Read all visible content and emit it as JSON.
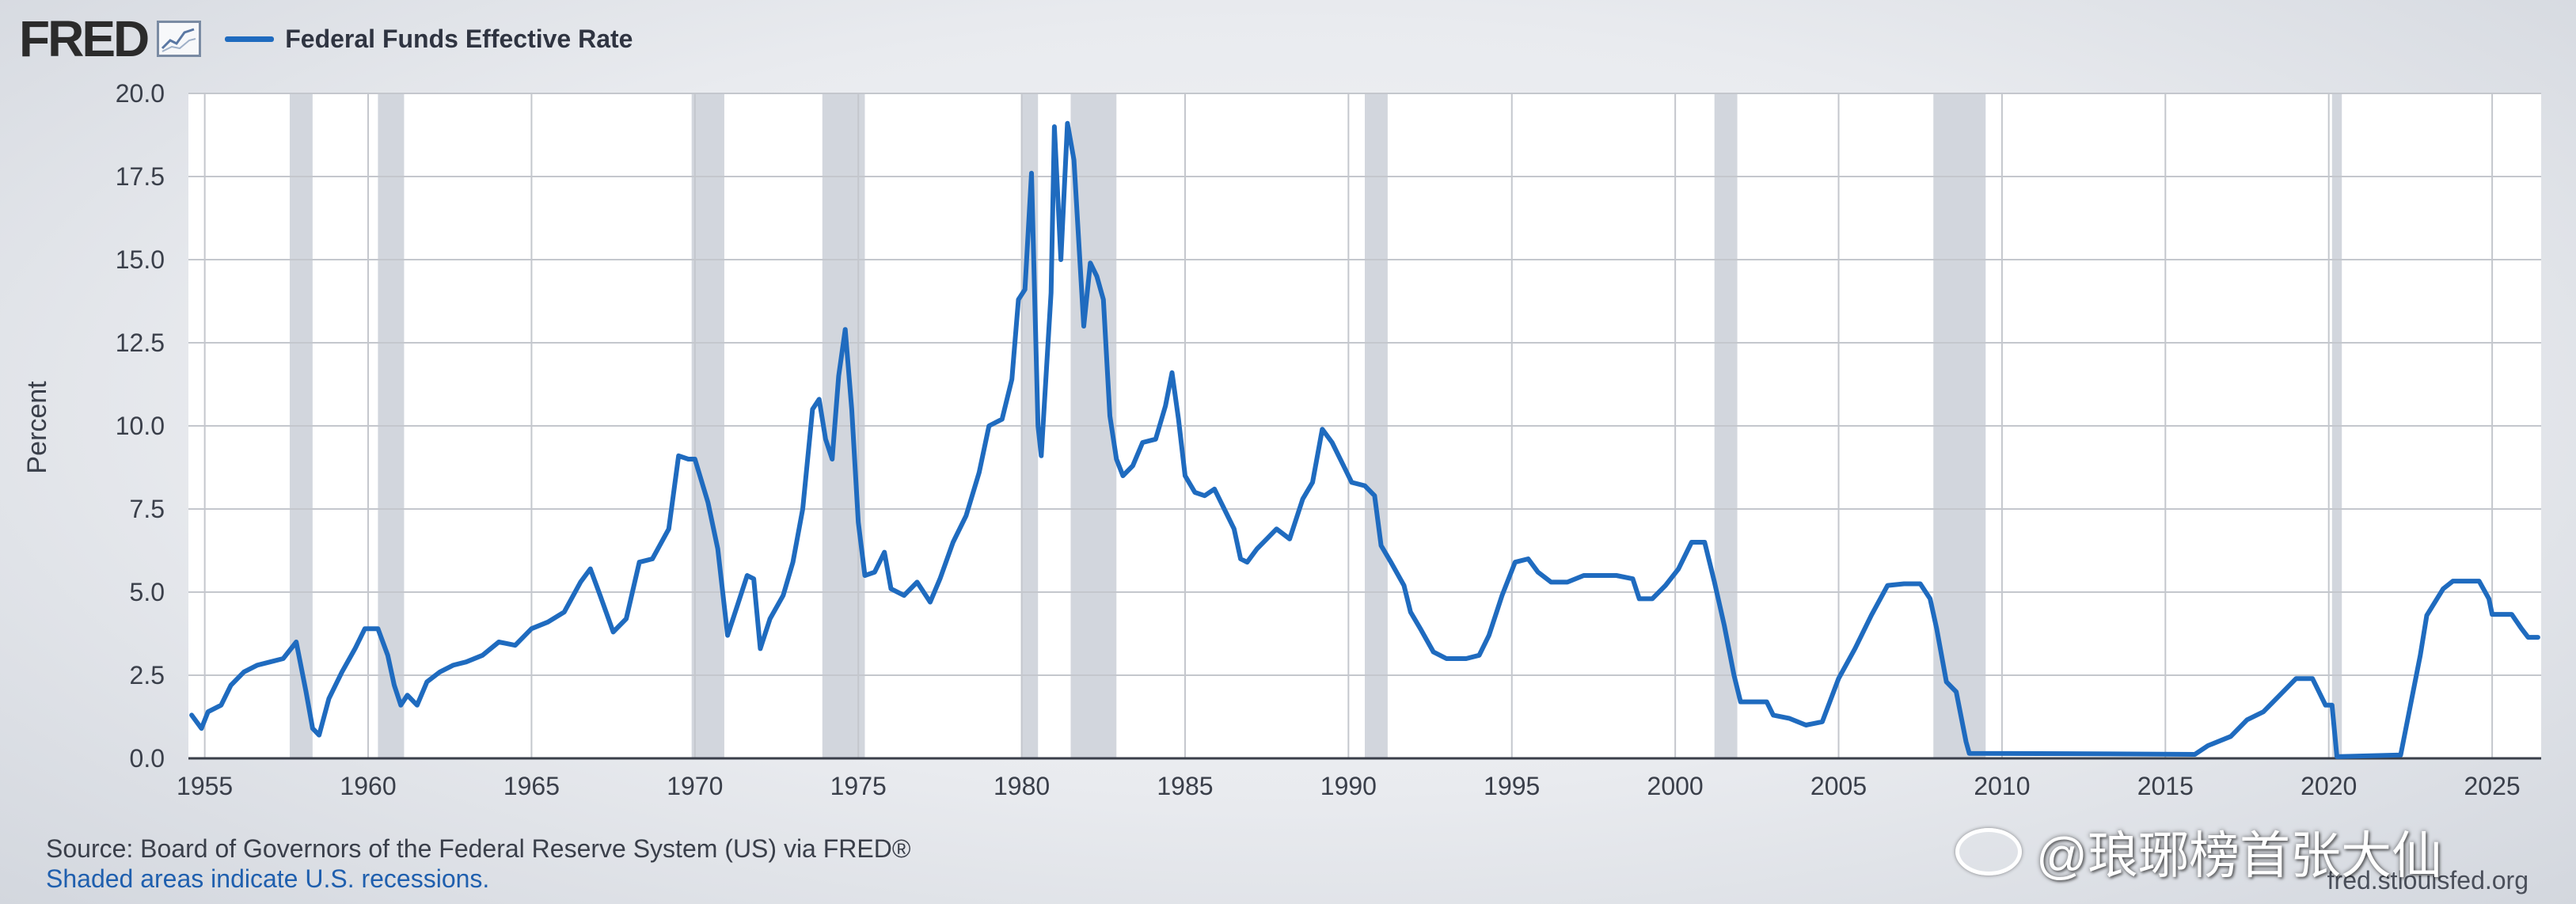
{
  "header": {
    "logo_text": "FRED",
    "logo_icon": "line-chart-icon",
    "series_label": "Federal Funds Effective Rate"
  },
  "colors": {
    "series": "#1f6bbf",
    "recession_fill": "#d2d6dd",
    "grid": "#c4c7cd",
    "plot_bg": "#ffffff"
  },
  "chart_data": {
    "type": "line",
    "ylabel": "Percent",
    "xlim": [
      1954.5,
      2026.5
    ],
    "ylim": [
      0,
      20
    ],
    "yticks": [
      "0.0",
      "2.5",
      "5.0",
      "7.5",
      "10.0",
      "12.5",
      "15.0",
      "17.5",
      "20.0"
    ],
    "ytick_values": [
      0,
      2.5,
      5,
      7.5,
      10,
      12.5,
      15,
      17.5,
      20
    ],
    "xticks": [
      "1955",
      "1960",
      "1965",
      "1970",
      "1975",
      "1980",
      "1985",
      "1990",
      "1995",
      "2000",
      "2005",
      "2010",
      "2015",
      "2020",
      "2025"
    ],
    "xtick_values": [
      1955,
      1960,
      1965,
      1970,
      1975,
      1980,
      1985,
      1990,
      1995,
      2000,
      2005,
      2010,
      2015,
      2020,
      2025
    ],
    "grid": true,
    "recessions": [
      [
        1957.6,
        1958.3
      ],
      [
        1960.3,
        1961.1
      ],
      [
        1969.9,
        1970.9
      ],
      [
        1973.9,
        1975.2
      ],
      [
        1980.0,
        1980.5
      ],
      [
        1981.5,
        1982.9
      ],
      [
        1990.5,
        1991.2
      ],
      [
        2001.2,
        2001.9
      ],
      [
        2007.9,
        2009.5
      ],
      [
        2020.1,
        2020.4
      ]
    ],
    "series": [
      {
        "values": [
          [
            1954.6,
            1.3
          ],
          [
            1954.9,
            0.9
          ],
          [
            1955.1,
            1.4
          ],
          [
            1955.5,
            1.6
          ],
          [
            1955.8,
            2.2
          ],
          [
            1956.2,
            2.6
          ],
          [
            1956.6,
            2.8
          ],
          [
            1957.0,
            2.9
          ],
          [
            1957.4,
            3.0
          ],
          [
            1957.8,
            3.5
          ],
          [
            1958.1,
            2.0
          ],
          [
            1958.3,
            0.9
          ],
          [
            1958.5,
            0.7
          ],
          [
            1958.8,
            1.8
          ],
          [
            1959.2,
            2.6
          ],
          [
            1959.6,
            3.3
          ],
          [
            1959.9,
            3.9
          ],
          [
            1960.3,
            3.9
          ],
          [
            1960.6,
            3.1
          ],
          [
            1960.8,
            2.2
          ],
          [
            1961.0,
            1.6
          ],
          [
            1961.2,
            1.9
          ],
          [
            1961.5,
            1.6
          ],
          [
            1961.8,
            2.3
          ],
          [
            1962.2,
            2.6
          ],
          [
            1962.6,
            2.8
          ],
          [
            1963.0,
            2.9
          ],
          [
            1963.5,
            3.1
          ],
          [
            1964.0,
            3.5
          ],
          [
            1964.5,
            3.4
          ],
          [
            1965.0,
            3.9
          ],
          [
            1965.5,
            4.1
          ],
          [
            1966.0,
            4.4
          ],
          [
            1966.5,
            5.3
          ],
          [
            1966.8,
            5.7
          ],
          [
            1967.1,
            4.9
          ],
          [
            1967.5,
            3.8
          ],
          [
            1967.9,
            4.2
          ],
          [
            1968.3,
            5.9
          ],
          [
            1968.7,
            6.0
          ],
          [
            1969.2,
            6.9
          ],
          [
            1969.5,
            9.1
          ],
          [
            1969.8,
            9.0
          ],
          [
            1970.0,
            9.0
          ],
          [
            1970.4,
            7.7
          ],
          [
            1970.7,
            6.3
          ],
          [
            1971.0,
            3.7
          ],
          [
            1971.3,
            4.6
          ],
          [
            1971.6,
            5.5
          ],
          [
            1971.8,
            5.4
          ],
          [
            1972.0,
            3.3
          ],
          [
            1972.3,
            4.2
          ],
          [
            1972.7,
            4.9
          ],
          [
            1973.0,
            5.9
          ],
          [
            1973.3,
            7.5
          ],
          [
            1973.6,
            10.5
          ],
          [
            1973.8,
            10.8
          ],
          [
            1974.0,
            9.6
          ],
          [
            1974.2,
            9.0
          ],
          [
            1974.4,
            11.5
          ],
          [
            1974.6,
            12.9
          ],
          [
            1974.8,
            10.5
          ],
          [
            1975.0,
            7.1
          ],
          [
            1975.2,
            5.5
          ],
          [
            1975.5,
            5.6
          ],
          [
            1975.8,
            6.2
          ],
          [
            1976.0,
            5.1
          ],
          [
            1976.4,
            4.9
          ],
          [
            1976.8,
            5.3
          ],
          [
            1977.2,
            4.7
          ],
          [
            1977.5,
            5.4
          ],
          [
            1977.9,
            6.5
          ],
          [
            1978.3,
            7.3
          ],
          [
            1978.7,
            8.6
          ],
          [
            1979.0,
            10.0
          ],
          [
            1979.4,
            10.2
          ],
          [
            1979.7,
            11.4
          ],
          [
            1979.9,
            13.8
          ],
          [
            1980.1,
            14.1
          ],
          [
            1980.3,
            17.6
          ],
          [
            1980.5,
            10.0
          ],
          [
            1980.6,
            9.1
          ],
          [
            1980.9,
            14.0
          ],
          [
            1981.0,
            19.0
          ],
          [
            1981.2,
            15.0
          ],
          [
            1981.4,
            19.1
          ],
          [
            1981.6,
            18.0
          ],
          [
            1981.9,
            13.0
          ],
          [
            1982.1,
            14.9
          ],
          [
            1982.3,
            14.5
          ],
          [
            1982.5,
            13.8
          ],
          [
            1982.7,
            10.3
          ],
          [
            1982.9,
            9.0
          ],
          [
            1983.1,
            8.5
          ],
          [
            1983.4,
            8.8
          ],
          [
            1983.7,
            9.5
          ],
          [
            1984.1,
            9.6
          ],
          [
            1984.4,
            10.6
          ],
          [
            1984.6,
            11.6
          ],
          [
            1984.8,
            10.2
          ],
          [
            1985.0,
            8.5
          ],
          [
            1985.3,
            8.0
          ],
          [
            1985.6,
            7.9
          ],
          [
            1985.9,
            8.1
          ],
          [
            1986.2,
            7.5
          ],
          [
            1986.5,
            6.9
          ],
          [
            1986.7,
            6.0
          ],
          [
            1986.9,
            5.9
          ],
          [
            1987.2,
            6.3
          ],
          [
            1987.5,
            6.6
          ],
          [
            1987.8,
            6.9
          ],
          [
            1988.2,
            6.6
          ],
          [
            1988.6,
            7.8
          ],
          [
            1988.9,
            8.3
          ],
          [
            1989.2,
            9.9
          ],
          [
            1989.5,
            9.5
          ],
          [
            1989.8,
            8.9
          ],
          [
            1990.1,
            8.3
          ],
          [
            1990.5,
            8.2
          ],
          [
            1990.8,
            7.9
          ],
          [
            1991.0,
            6.4
          ],
          [
            1991.3,
            5.9
          ],
          [
            1991.7,
            5.2
          ],
          [
            1991.9,
            4.4
          ],
          [
            1992.2,
            3.9
          ],
          [
            1992.6,
            3.2
          ],
          [
            1993.0,
            3.0
          ],
          [
            1993.6,
            3.0
          ],
          [
            1994.0,
            3.1
          ],
          [
            1994.3,
            3.7
          ],
          [
            1994.7,
            4.9
          ],
          [
            1995.1,
            5.9
          ],
          [
            1995.5,
            6.0
          ],
          [
            1995.8,
            5.6
          ],
          [
            1996.2,
            5.3
          ],
          [
            1996.7,
            5.3
          ],
          [
            1997.2,
            5.5
          ],
          [
            1997.7,
            5.5
          ],
          [
            1998.2,
            5.5
          ],
          [
            1998.7,
            5.4
          ],
          [
            1998.9,
            4.8
          ],
          [
            1999.3,
            4.8
          ],
          [
            1999.7,
            5.2
          ],
          [
            2000.1,
            5.7
          ],
          [
            2000.5,
            6.5
          ],
          [
            2000.9,
            6.5
          ],
          [
            2001.2,
            5.3
          ],
          [
            2001.5,
            4.0
          ],
          [
            2001.8,
            2.5
          ],
          [
            2002.0,
            1.7
          ],
          [
            2002.8,
            1.7
          ],
          [
            2003.0,
            1.3
          ],
          [
            2003.5,
            1.2
          ],
          [
            2004.0,
            1.0
          ],
          [
            2004.5,
            1.1
          ],
          [
            2005.0,
            2.4
          ],
          [
            2005.5,
            3.3
          ],
          [
            2006.0,
            4.3
          ],
          [
            2006.5,
            5.2
          ],
          [
            2007.0,
            5.25
          ],
          [
            2007.5,
            5.25
          ],
          [
            2007.8,
            4.8
          ],
          [
            2008.0,
            3.9
          ],
          [
            2008.3,
            2.3
          ],
          [
            2008.6,
            2.0
          ],
          [
            2008.9,
            0.5
          ],
          [
            2009.0,
            0.15
          ],
          [
            2012.0,
            0.14
          ],
          [
            2015.9,
            0.12
          ],
          [
            2016.3,
            0.38
          ],
          [
            2017.0,
            0.66
          ],
          [
            2017.5,
            1.16
          ],
          [
            2018.0,
            1.4
          ],
          [
            2018.5,
            1.9
          ],
          [
            2019.0,
            2.4
          ],
          [
            2019.5,
            2.4
          ],
          [
            2019.9,
            1.6
          ],
          [
            2020.1,
            1.6
          ],
          [
            2020.25,
            0.05
          ],
          [
            2022.2,
            0.1
          ],
          [
            2022.5,
            1.6
          ],
          [
            2022.8,
            3.1
          ],
          [
            2023.0,
            4.3
          ],
          [
            2023.5,
            5.1
          ],
          [
            2023.8,
            5.33
          ],
          [
            2024.6,
            5.33
          ],
          [
            2024.9,
            4.8
          ],
          [
            2025.0,
            4.33
          ],
          [
            2025.6,
            4.33
          ],
          [
            2025.9,
            3.9
          ],
          [
            2026.1,
            3.64
          ],
          [
            2026.4,
            3.64
          ]
        ]
      }
    ]
  },
  "footer": {
    "source": "Source: Board of Governors of the Federal Reserve System (US) via FRED®",
    "note": "Shaded areas indicate U.S. recessions.",
    "url": "fred.stlouisfed.org"
  },
  "watermark": "@琅琊榜首张大仙"
}
